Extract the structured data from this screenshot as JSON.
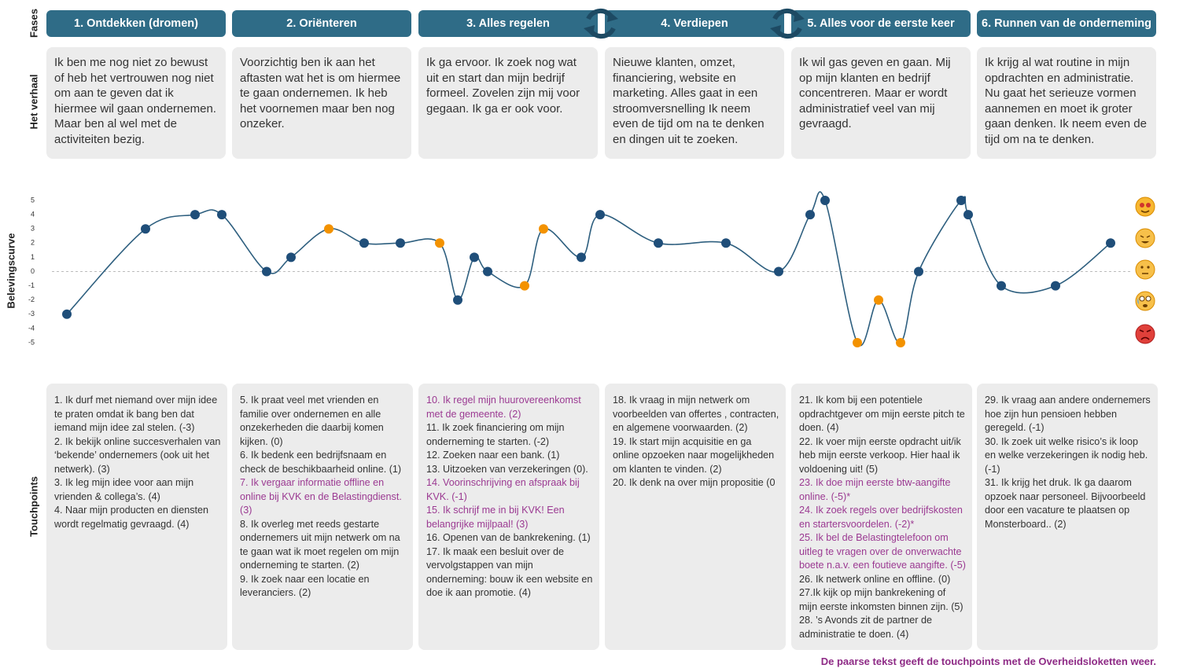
{
  "row_labels": {
    "phases": "Fases",
    "story": "Het verhaal",
    "curve": "Belevingscurve",
    "touchpoints": "Touchpoints"
  },
  "phases": [
    {
      "title": "1. Ontdekken (dromen)",
      "story": "Ik ben me nog niet zo bewust of heb het vertrouwen nog niet om aan te geven dat ik hiermee wil gaan ondernemen. Maar ben al wel met de activiteiten bezig.",
      "touchpoints": [
        {
          "text": "1. Ik durf met niemand over mijn idee te praten omdat ik bang ben dat iemand mijn idee zal stelen. (-3)",
          "overheid": false
        },
        {
          "text": "2. Ik bekijk online succesverhalen van ‘bekende’ ondernemers (ook uit het netwerk). (3)",
          "overheid": false
        },
        {
          "text": "3. Ik leg mijn idee voor aan mijn vrienden & collega’s. (4)",
          "overheid": false
        },
        {
          "text": "4. Naar mijn producten en diensten wordt regelmatig gevraagd. (4)",
          "overheid": false
        }
      ]
    },
    {
      "title": "2. Oriënteren",
      "story": "Voorzichtig ben ik aan het aftasten wat het is om hiermee te gaan ondernemen. Ik heb het voornemen maar ben nog onzeker.",
      "touchpoints": [
        {
          "text": "5. Ik praat veel met vrienden en familie over ondernemen en alle onzekerheden die daarbij komen kijken. (0)",
          "overheid": false
        },
        {
          "text": "6. Ik bedenk een bedrijfsnaam en check de beschikbaarheid online. (1)",
          "overheid": false
        },
        {
          "text": "7. Ik vergaar informatie offline en online bij KVK en de Belastingdienst. (3)",
          "overheid": true
        },
        {
          "text": "8. Ik overleg met reeds gestarte ondernemers uit mijn netwerk om na te gaan wat ik moet regelen om mijn onderneming te starten. (2)",
          "overheid": false
        },
        {
          "text": "9. Ik zoek naar een locatie en leveranciers. (2)",
          "overheid": false
        }
      ]
    },
    {
      "title": "3. Alles regelen",
      "story": "Ik ga ervoor. Ik zoek nog wat uit en start dan mijn bedrijf formeel. Zovelen zijn mij voor gegaan. Ik ga er ook voor.",
      "touchpoints": [
        {
          "text": "10. Ik regel mijn huurovereenkomst met de gemeente. (2)",
          "overheid": true
        },
        {
          "text": "11. Ik zoek financiering om mijn onderneming te starten. (-2)",
          "overheid": false
        },
        {
          "text": "12. Zoeken naar een bank. (1)",
          "overheid": false
        },
        {
          "text": "13. Uitzoeken van verzekeringen (0).",
          "overheid": false
        },
        {
          "text": "14. Voorinschrijving en afspraak bij KVK.  (-1)",
          "overheid": true
        },
        {
          "text": "15. Ik schrijf me in bij KVK! Een belangrijke mijlpaal! (3)",
          "overheid": true
        },
        {
          "text": "16. Openen van de bankrekening. (1)",
          "overheid": false
        },
        {
          "text": "17. Ik maak een besluit over de vervolgstappen van mijn onderneming: bouw ik een website en doe ik aan promotie. (4)",
          "overheid": false
        }
      ]
    },
    {
      "title": "4. Verdiepen",
      "story": "Nieuwe klanten, omzet, financiering, website en marketing. Alles gaat in een stroomversnelling Ik neem even de tijd om na te denken en dingen uit te zoeken.",
      "touchpoints": [
        {
          "text": "18. Ik vraag in mijn netwerk om voorbeelden van offertes , contracten, en algemene voorwaarden. (2)",
          "overheid": false
        },
        {
          "text": "19. Ik start mijn acquisitie en ga online opzoeken naar mogelijkheden om klanten te vinden. (2)",
          "overheid": false
        },
        {
          "text": "20. Ik denk na over mijn propositie (0",
          "overheid": false
        }
      ]
    },
    {
      "title": "5. Alles voor de eerste keer",
      "story": "Ik wil gas geven en gaan. Mij op mijn klanten en bedrijf concentreren. Maar er wordt administratief veel van mij gevraagd.",
      "touchpoints": [
        {
          "text": "21. Ik kom bij een potentiele opdrachtgever om mijn eerste pitch te doen. (4)",
          "overheid": false
        },
        {
          "text": "22. Ik voer mijn eerste opdracht uit/ik heb mijn eerste verkoop. Hier haal ik voldoening uit! (5)",
          "overheid": false
        },
        {
          "text": "23. Ik doe mijn eerste btw-aangifte online. (-5)*",
          "overheid": true
        },
        {
          "text": "24. Ik zoek regels over bedrijfskosten en startersvoordelen. (-2)*",
          "overheid": true
        },
        {
          "text": "25. Ik bel de Belastingtelefoon om uitleg te vragen over de onverwachte boete n.a.v. een foutieve aangifte. (-5)",
          "overheid": true
        },
        {
          "text": "26. Ik netwerk online en offline. (0)",
          "overheid": false
        },
        {
          "text": "27.Ik kijk op mijn bankrekening of mijn eerste inkomsten binnen zijn. (5)",
          "overheid": false
        },
        {
          "text": "28. ’s Avonds zit de partner de administratie te doen.  (4)",
          "overheid": false
        }
      ]
    },
    {
      "title": "6. Runnen van de onderneming",
      "story": "Ik krijg al wat routine in mijn opdrachten en administratie. Nu gaat het serieuze vormen aannemen en moet ik groter gaan denken. Ik neem even de tijd om na te denken.",
      "touchpoints": [
        {
          "text": "29. Ik vraag aan andere ondernemers hoe zijn hun pensioen hebben geregeld. (-1)",
          "overheid": false
        },
        {
          "text": "30. Ik zoek uit welke risico’s ik loop en welke verzekeringen ik nodig heb. (-1)",
          "overheid": false
        },
        {
          "text": "31. Ik krijg het druk. Ik ga daarom opzoek naar personeel. Bijvoorbeeld door een vacature te plaatsen op Monsterboard.. (2)",
          "overheid": false
        }
      ]
    }
  ],
  "curve": {
    "values": [
      -3,
      3,
      4,
      4,
      0,
      1,
      3,
      2,
      2,
      2,
      -2,
      1,
      0,
      -1,
      3,
      1,
      4,
      2,
      2,
      0,
      4,
      5,
      -5,
      -2,
      -5,
      0,
      5,
      4,
      -1,
      -1,
      2
    ],
    "ylim": [
      -5,
      5
    ],
    "yticks": [
      5,
      4,
      3,
      2,
      1,
      0,
      -1,
      -2,
      -3,
      -4,
      -5
    ],
    "color": "#1f4e79",
    "line_color": "#2e5f7f",
    "overheid_color": "#f39200"
  },
  "note": "De paarse tekst geeft de touchpoints met de Overheidsloketten weer."
}
